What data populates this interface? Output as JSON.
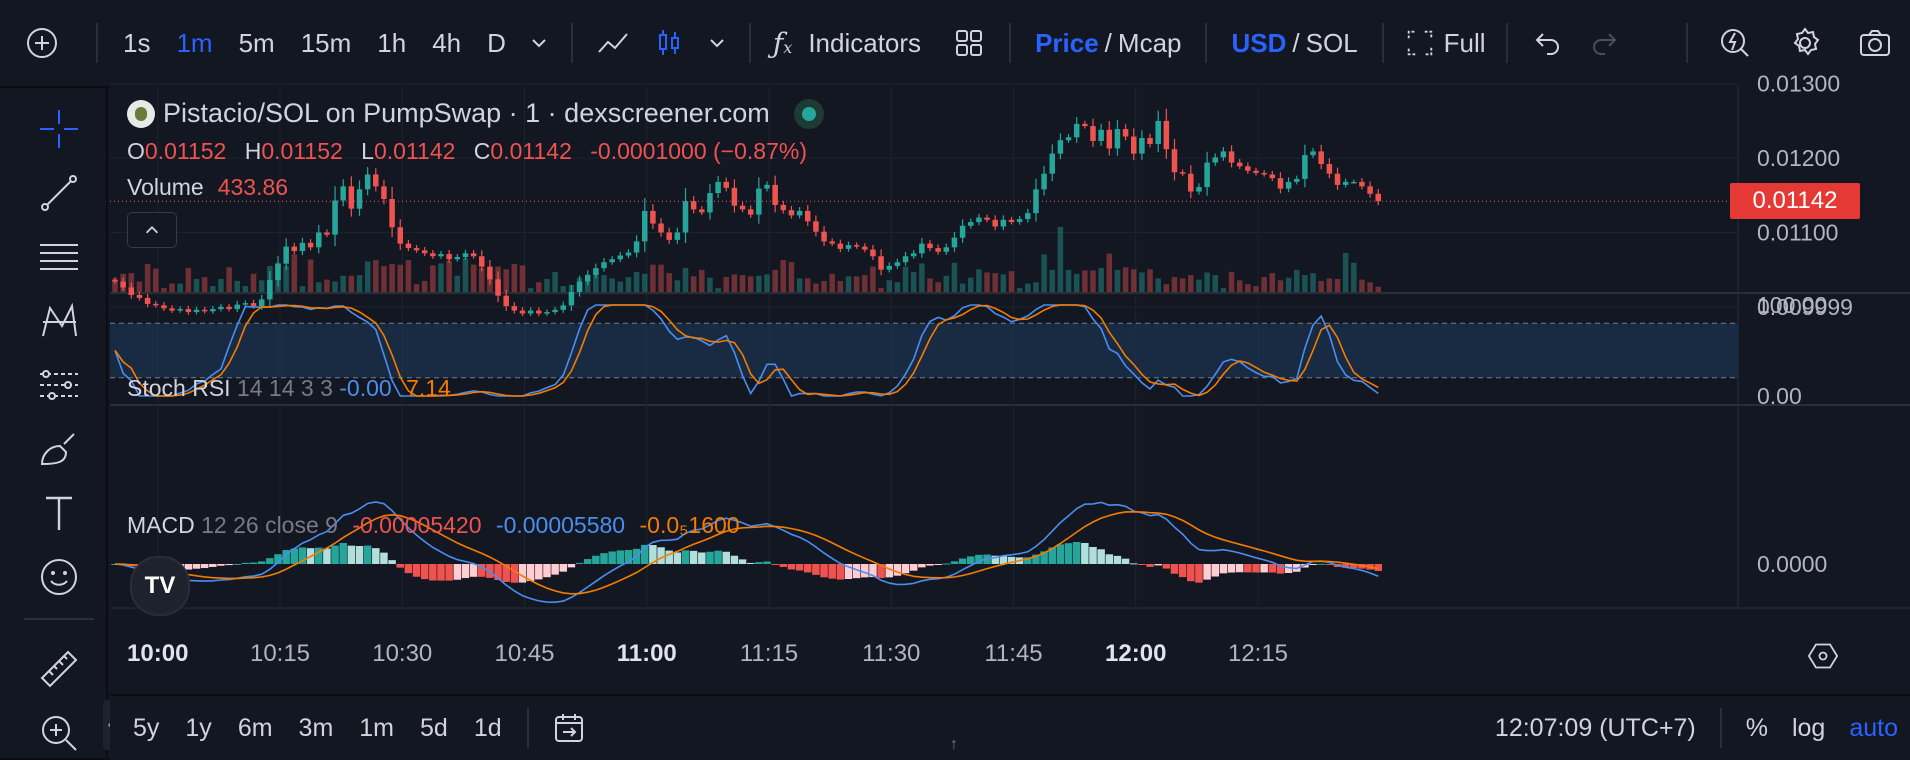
{
  "toolbar": {
    "timeframes": [
      {
        "label": "1s",
        "active": false
      },
      {
        "label": "1m",
        "active": true
      },
      {
        "label": "5m",
        "active": false
      },
      {
        "label": "15m",
        "active": false
      },
      {
        "label": "1h",
        "active": false
      },
      {
        "label": "4h",
        "active": false
      },
      {
        "label": "D",
        "active": false
      }
    ],
    "indicators_label": "Indicators",
    "price_label": "Price",
    "mcap_label": "Mcap",
    "usd_label": "USD",
    "sol_label": "SOL",
    "full_label": "Full",
    "separator": "/"
  },
  "legend": {
    "title": "Pistacio/SOL on PumpSwap · 1 · dexscreener.com",
    "ohlc": [
      {
        "key": "O",
        "value": "0.01152"
      },
      {
        "key": "H",
        "value": "0.01152"
      },
      {
        "key": "L",
        "value": "0.01142"
      },
      {
        "key": "C",
        "value": "0.01142"
      }
    ],
    "change": "-0.0001000 (−0.87%)",
    "volume_label": "Volume",
    "volume_value": "433.86"
  },
  "last_price": "0.01142",
  "stoch": {
    "label": "Stoch RSI",
    "params": "14 14 3 3",
    "k": "-0.00",
    "d": "7.14",
    "axis": [
      "100.00",
      "0.00"
    ]
  },
  "macd": {
    "label": "MACD",
    "params": "12 26 close 9",
    "hist": "-0.00005420",
    "macd": "-0.00005580",
    "signal": "-0.0₅1600",
    "axis": [
      "0.0000"
    ]
  },
  "price_axis": [
    "0.01300",
    "0.01200",
    "0.01100",
    "0.009999"
  ],
  "time_axis": [
    {
      "label": "10:00",
      "bold": true
    },
    {
      "label": "10:15",
      "bold": false
    },
    {
      "label": "10:30",
      "bold": false
    },
    {
      "label": "10:45",
      "bold": false
    },
    {
      "label": "11:00",
      "bold": true
    },
    {
      "label": "11:15",
      "bold": false
    },
    {
      "label": "11:30",
      "bold": false
    },
    {
      "label": "11:45",
      "bold": false
    },
    {
      "label": "12:00",
      "bold": true
    },
    {
      "label": "12:15",
      "bold": false
    }
  ],
  "bottom": {
    "ranges": [
      "5y",
      "1y",
      "6m",
      "3m",
      "1m",
      "5d",
      "1d"
    ],
    "clock": "12:07:09 (UTC+7)",
    "percent": "%",
    "log": "log",
    "auto": "auto"
  },
  "colors": {
    "up": "#26a69a",
    "down": "#ef5350",
    "k_line": "#4b8ef1",
    "d_line": "#f57c00",
    "accent": "#2962ff"
  },
  "chart_data": {
    "type": "candlestick",
    "interval": "1m",
    "x_start": "09:55",
    "ylim": [
      0.00985,
      0.01305
    ],
    "candle_closes": [
      0.01034,
      0.01026,
      0.01016,
      0.01012,
      0.01004,
      0.01002,
      0.00998,
      0.00995,
      0.00997,
      0.00993,
      0.00996,
      0.00994,
      0.00997,
      0.01,
      0.00997,
      0.01003,
      0.01005,
      0.01001,
      0.0101,
      0.01036,
      0.01058,
      0.01081,
      0.01075,
      0.01086,
      0.0108,
      0.011,
      0.01097,
      0.01143,
      0.01162,
      0.01132,
      0.01158,
      0.01178,
      0.01162,
      0.01145,
      0.01107,
      0.01085,
      0.01079,
      0.01076,
      0.01072,
      0.01068,
      0.01071,
      0.01064,
      0.01067,
      0.01072,
      0.01068,
      0.01054,
      0.01037,
      0.01015,
      0.01001,
      0.00995,
      0.00991,
      0.00995,
      0.00991,
      0.00993,
      0.00996,
      0.01002,
      0.0102,
      0.01034,
      0.01043,
      0.01052,
      0.0106,
      0.01064,
      0.01069,
      0.01073,
      0.01088,
      0.01129,
      0.01112,
      0.011,
      0.0109,
      0.011,
      0.01142,
      0.01131,
      0.01127,
      0.01153,
      0.01168,
      0.0116,
      0.01136,
      0.01131,
      0.01124,
      0.01159,
      0.01164,
      0.01137,
      0.0113,
      0.01123,
      0.01129,
      0.01115,
      0.01101,
      0.01088,
      0.01085,
      0.01078,
      0.01083,
      0.01081,
      0.01077,
      0.01068,
      0.0105,
      0.01055,
      0.0106,
      0.01068,
      0.01072,
      0.01085,
      0.01079,
      0.01074,
      0.0108,
      0.01093,
      0.01109,
      0.01114,
      0.0112,
      0.01117,
      0.01108,
      0.01117,
      0.01114,
      0.01118,
      0.01126,
      0.01158,
      0.01179,
      0.01206,
      0.01224,
      0.01228,
      0.01246,
      0.01243,
      0.01223,
      0.01238,
      0.01213,
      0.01239,
      0.01229,
      0.01206,
      0.01227,
      0.01219,
      0.0125,
      0.01212,
      0.01181,
      0.01179,
      0.01155,
      0.01161,
      0.01194,
      0.01201,
      0.01209,
      0.01194,
      0.01189,
      0.01183,
      0.0118,
      0.01178,
      0.01173,
      0.01159,
      0.01168,
      0.01172,
      0.01204,
      0.01209,
      0.01192,
      0.01179,
      0.01164,
      0.01168,
      0.01168,
      0.01162,
      0.01152,
      0.01142
    ],
    "volume_relative": [
      0.21,
      0.28,
      0.29,
      0.16,
      0.43,
      0.36,
      0.06,
      0.13,
      0.13,
      0.37,
      0.2,
      0.23,
      0.09,
      0.2,
      0.38,
      0.17,
      0.09,
      0.28,
      0.18,
      0.4,
      0.45,
      0.4,
      0.58,
      0.09,
      0.5,
      0.15,
      0.19,
      0.16,
      0.25,
      0.25,
      0.26,
      0.47,
      0.49,
      0.4,
      0.43,
      0.42,
      0.49,
      0.12,
      0.17,
      0.41,
      0.44,
      0.48,
      0.25,
      0.52,
      0.42,
      0.37,
      0.28,
      0.39,
      0.35,
      0.43,
      0.41,
      0.06,
      0.15,
      0.2,
      0.31,
      0.09,
      0.11,
      0.22,
      0.16,
      0.32,
      0.26,
      0.21,
      0.16,
      0.23,
      0.31,
      0.28,
      0.42,
      0.42,
      0.29,
      0.18,
      0.37,
      0.24,
      0.34,
      0.22,
      0.06,
      0.23,
      0.27,
      0.26,
      0.24,
      0.25,
      0.27,
      0.34,
      0.49,
      0.46,
      0.21,
      0.21,
      0.13,
      0.17,
      0.28,
      0.17,
      0.24,
      0.24,
      0.26,
      0.39,
      0.06,
      0.18,
      0.15,
      0.39,
      0.31,
      0.44,
      0.21,
      0.15,
      0.25,
      0.45,
      0.13,
      0.22,
      0.35,
      0.3,
      0.29,
      0.27,
      0.32,
      0.06,
      0.13,
      0.15,
      0.58,
      0.34,
      1.0,
      0.34,
      0.28,
      0.33,
      0.33,
      0.37,
      0.59,
      0.34,
      0.38,
      0.35,
      0.3,
      0.35,
      0.21,
      0.12,
      0.23,
      0.21,
      0.26,
      0.19,
      0.3,
      0.26,
      0.06,
      0.31,
      0.18,
      0.12,
      0.09,
      0.23,
      0.29,
      0.18,
      0.22,
      0.34,
      0.26,
      0.29,
      0.17,
      0.21,
      0.2,
      0.6,
      0.45,
      0.19,
      0.15,
      0.08
    ]
  }
}
